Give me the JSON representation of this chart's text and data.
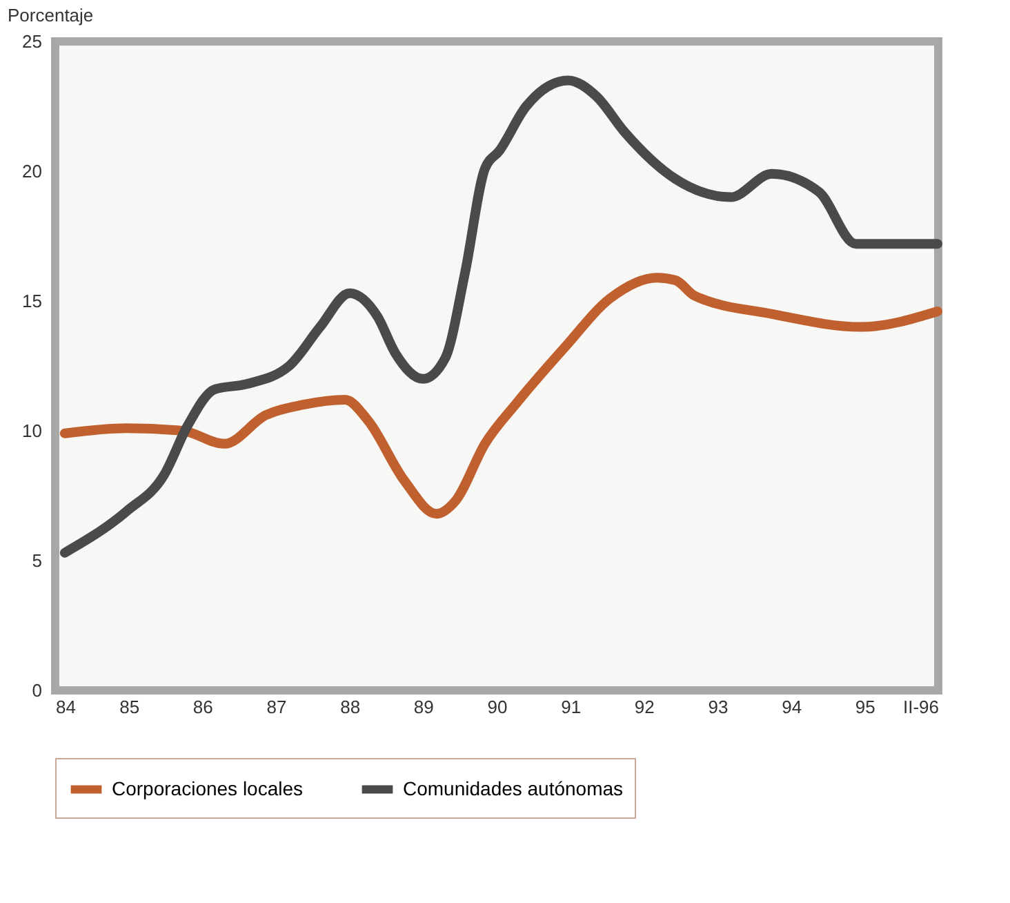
{
  "chart_data": {
    "type": "line",
    "ylabel": "Porcentaje",
    "xlim": [
      84,
      96
    ],
    "xticks": [
      84,
      85,
      86,
      87,
      88,
      89,
      90,
      91,
      92,
      93,
      94,
      95,
      {
        "value": 96,
        "label": "II-96"
      }
    ],
    "ylim": [
      0,
      25
    ],
    "yticks": [
      0,
      5,
      10,
      15,
      20,
      25
    ],
    "grid": false,
    "legend": "bottom",
    "line_style": "solid",
    "marker": "none",
    "series": [
      {
        "name": "Corporaciones locales",
        "color": "#c0602e",
        "x": [
          84.13,
          84.97,
          85.73,
          86.3,
          86.86,
          87.36,
          87.94,
          88.25,
          88.74,
          89.18,
          89.44,
          89.84,
          90.28,
          90.92,
          91.54,
          92.18,
          92.43,
          92.69,
          93.74,
          94.95,
          95.99
        ],
        "values": [
          9.9,
          10.1,
          10.0,
          9.5,
          10.6,
          11.0,
          11.2,
          10.4,
          8.1,
          6.8,
          7.3,
          9.5,
          11.1,
          13.2,
          15.1,
          15.9,
          15.8,
          15.2,
          14.5,
          14.0,
          14.6
        ]
      },
      {
        "name": "Comunidades autónomas",
        "color": "#4a4a4a",
        "x": [
          84.13,
          84.97,
          85.48,
          85.8,
          86.17,
          86.6,
          87.18,
          87.6,
          88.0,
          88.38,
          88.62,
          89.0,
          89.3,
          89.57,
          89.84,
          90.04,
          90.4,
          90.97,
          91.35,
          91.74,
          92.43,
          93.18,
          93.74,
          94.38,
          94.88,
          95.99
        ],
        "values": [
          5.3,
          6.9,
          8.3,
          10.2,
          11.6,
          11.8,
          12.5,
          14.0,
          15.3,
          14.4,
          13.0,
          12.0,
          12.8,
          16.1,
          20.1,
          20.8,
          22.5,
          23.5,
          22.9,
          21.5,
          19.7,
          19.0,
          19.9,
          19.2,
          17.2,
          17.2
        ]
      }
    ]
  }
}
